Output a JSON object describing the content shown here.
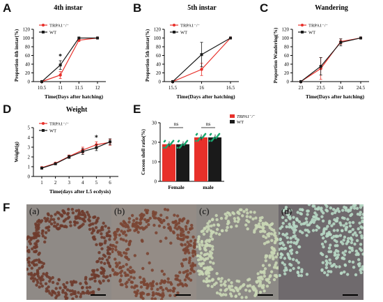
{
  "panels": {
    "A": "A",
    "B": "B",
    "C": "C",
    "D": "D",
    "E": "E",
    "F": "F"
  },
  "colors": {
    "red": "#e8302a",
    "black": "#1a1a1a",
    "green_dots": "#1aa870"
  },
  "photos": [
    {
      "label": "(a)",
      "bg": "#8f8a86",
      "pellet": "#6e3b2c"
    },
    {
      "label": "(b)",
      "bg": "#948c86",
      "pellet": "#7a4533"
    },
    {
      "label": "(c)",
      "bg": "#8d8a86",
      "pellet": "#c9d6b5"
    },
    {
      "label": "(d)",
      "bg": "#6f6a6d",
      "pellet": "#b7d8c4"
    }
  ],
  "chart_data": [
    {
      "id": "A",
      "type": "line",
      "title": "4th instar",
      "xlabel": "Time(Days after hatching)",
      "ylabel": "Proportion 4th instar(%)",
      "categories": [
        "10.5",
        "11",
        "11.5",
        "12"
      ],
      "ylim": [
        0,
        120
      ],
      "yticks": [
        "0",
        "20",
        "40",
        "60",
        "80",
        "100",
        "120"
      ],
      "legend": [
        "TRPA1⁻/⁻",
        "WT"
      ],
      "series": [
        {
          "name": "TRPA1⁻/⁻",
          "values": [
            0,
            15,
            95,
            100
          ],
          "err": [
            0,
            8,
            3,
            0
          ]
        },
        {
          "name": "WT",
          "values": [
            0,
            38,
            100,
            100
          ],
          "err": [
            0,
            10,
            0,
            0
          ]
        }
      ],
      "annotations": [
        {
          "text": "*",
          "at": "11"
        }
      ]
    },
    {
      "id": "B",
      "type": "line",
      "title": "5th instar",
      "xlabel": "Time(Days after hatching)",
      "ylabel": "Proportion 5th instar(%)",
      "categories": [
        "15.5",
        "16",
        "16.5"
      ],
      "ylim": [
        0,
        120
      ],
      "yticks": [
        "0",
        "20",
        "40",
        "60",
        "80",
        "100",
        "120"
      ],
      "legend": [
        "TRPA1⁻/⁻",
        "WT"
      ],
      "series": [
        {
          "name": "TRPA1⁻/⁻",
          "values": [
            0,
            28,
            100
          ],
          "err": [
            0,
            14,
            0
          ]
        },
        {
          "name": "WT",
          "values": [
            0,
            62,
            100
          ],
          "err": [
            0,
            28,
            0
          ]
        }
      ]
    },
    {
      "id": "C",
      "type": "line",
      "title": "Wandering",
      "xlabel": "Time(Days after hatching)",
      "ylabel": "Proportion Wandering(%)",
      "categories": [
        "23",
        "23.5",
        "24",
        "24.5"
      ],
      "ylim": [
        0,
        120
      ],
      "yticks": [
        "0",
        "20",
        "40",
        "60",
        "80",
        "100",
        "120"
      ],
      "legend": [
        "TRPA1⁻/⁻",
        "WT"
      ],
      "series": [
        {
          "name": "TRPA1⁻/⁻",
          "values": [
            0,
            30,
            92,
            100
          ],
          "err": [
            0,
            25,
            6,
            0
          ]
        },
        {
          "name": "WT",
          "values": [
            0,
            35,
            90,
            100
          ],
          "err": [
            0,
            20,
            8,
            0
          ]
        }
      ]
    },
    {
      "id": "D",
      "type": "line",
      "title": "Weight",
      "xlabel": "Time(days after L5 ecdysis)",
      "ylabel": "Weight(g)",
      "categories": [
        "1",
        "2",
        "3",
        "4",
        "5",
        "6"
      ],
      "ylim": [
        0,
        5
      ],
      "yticks": [
        "0",
        "1",
        "2",
        "3",
        "4",
        "5"
      ],
      "legend": [
        "TRPA1⁻/⁻",
        "WT"
      ],
      "series": [
        {
          "name": "TRPA1⁻/⁻",
          "values": [
            0.9,
            1.35,
            2.05,
            2.7,
            3.25,
            3.5
          ],
          "err": [
            0.1,
            0.1,
            0.15,
            0.3,
            0.3,
            0.3
          ]
        },
        {
          "name": "WT",
          "values": [
            0.85,
            1.3,
            2.0,
            2.55,
            2.95,
            3.55
          ],
          "err": [
            0.1,
            0.1,
            0.15,
            0.3,
            0.3,
            0.3
          ]
        }
      ],
      "annotations": [
        {
          "text": "*",
          "at": "5"
        }
      ]
    },
    {
      "id": "E",
      "type": "bar",
      "title": "",
      "xlabel": "",
      "ylabel": "Cocoon shell ratio(%)",
      "categories": [
        "Female",
        "male"
      ],
      "ylim": [
        0,
        30
      ],
      "yticks": [
        "0",
        "10",
        "20",
        "30"
      ],
      "legend": [
        "TRPA1⁻/⁻",
        "WT"
      ],
      "series": [
        {
          "name": "TRPA1⁻/⁻",
          "values": [
            19,
            22.5
          ]
        },
        {
          "name": "WT",
          "values": [
            19,
            22.5
          ]
        }
      ],
      "annotations": [
        {
          "text": "ns",
          "at": "Female"
        },
        {
          "text": "ns",
          "at": "male"
        }
      ]
    }
  ]
}
